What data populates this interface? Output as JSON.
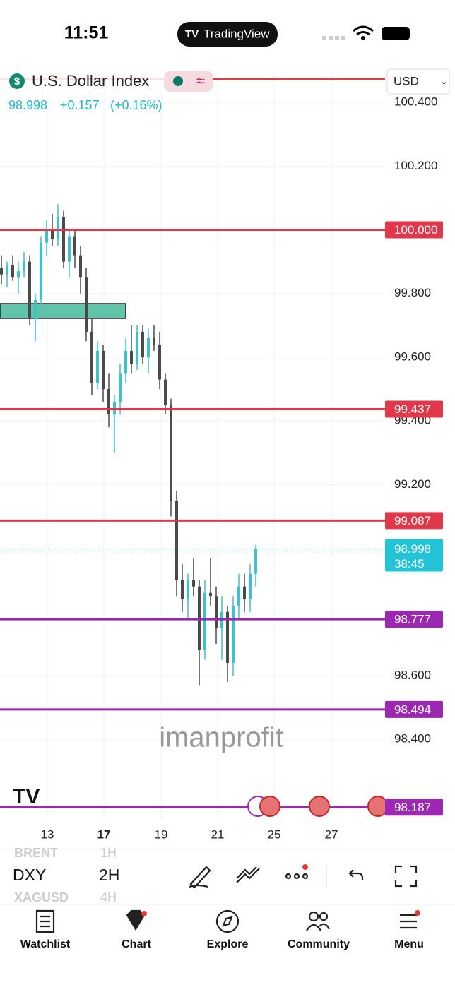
{
  "status_bar": {
    "time": "11:51",
    "app": "TradingView"
  },
  "header": {
    "title": "U.S. Dollar Index",
    "price": "98.998",
    "change": "+0.157",
    "change_pct": "(+0.16%)",
    "currency": "USD"
  },
  "chart_data": {
    "type": "candlestick",
    "ylim": [
      98.15,
      100.5
    ],
    "yticks": [
      {
        "value": 100.4,
        "label": "100.400"
      },
      {
        "value": 100.2,
        "label": "100.200"
      },
      {
        "value": 99.8,
        "label": "99.800"
      },
      {
        "value": 99.6,
        "label": "99.600"
      },
      {
        "value": 99.4,
        "label": "99.400"
      },
      {
        "value": 99.2,
        "label": "99.200"
      },
      {
        "value": 98.6,
        "label": "98.600"
      },
      {
        "value": 98.4,
        "label": "98.400"
      }
    ],
    "xticks": [
      "13",
      "17",
      "19",
      "21",
      "25",
      "27"
    ],
    "up_color": "#3fc1c9",
    "down_color": "#4a4a4a",
    "levels": [
      {
        "value": 100.0,
        "label": "100.000",
        "color": "#e0384a"
      },
      {
        "value": 99.437,
        "label": "99.437",
        "color": "#e0384a"
      },
      {
        "value": 99.087,
        "label": "99.087",
        "color": "#e0384a"
      },
      {
        "value": 98.777,
        "label": "98.777",
        "color": "#9c27b0"
      },
      {
        "value": 98.494,
        "label": "98.494",
        "color": "#9c27b0"
      },
      {
        "value": 98.187,
        "label": "98.187",
        "color": "#9c27b0"
      }
    ],
    "last_price": {
      "value": 98.998,
      "label": "98.998",
      "countdown": "38:45",
      "color": "#22c3d6"
    },
    "watermark": "imanprofit",
    "candles": [
      [
        99.88,
        99.92,
        99.83,
        99.86
      ],
      [
        99.86,
        99.9,
        99.82,
        99.89
      ],
      [
        99.89,
        99.92,
        99.84,
        99.85
      ],
      [
        99.85,
        99.9,
        99.8,
        99.87
      ],
      [
        99.87,
        99.93,
        99.85,
        99.9
      ],
      [
        99.9,
        99.92,
        99.7,
        99.72
      ],
      [
        99.72,
        99.8,
        99.65,
        99.78
      ],
      [
        99.78,
        99.98,
        99.76,
        99.96
      ],
      [
        99.96,
        100.03,
        99.92,
        100.0
      ],
      [
        100.0,
        100.05,
        99.95,
        99.97
      ],
      [
        99.97,
        100.08,
        99.95,
        100.04
      ],
      [
        100.04,
        100.06,
        99.88,
        99.9
      ],
      [
        99.9,
        100.0,
        99.85,
        99.98
      ],
      [
        99.98,
        100.0,
        99.88,
        99.92
      ],
      [
        99.92,
        99.95,
        99.8,
        99.85
      ],
      [
        99.85,
        99.88,
        99.65,
        99.68
      ],
      [
        99.68,
        99.72,
        99.48,
        99.52
      ],
      [
        99.52,
        99.65,
        99.5,
        99.62
      ],
      [
        99.62,
        99.64,
        99.46,
        99.5
      ],
      [
        99.5,
        99.55,
        99.38,
        99.42
      ],
      [
        99.42,
        99.48,
        99.3,
        99.46
      ],
      [
        99.46,
        99.58,
        99.42,
        99.55
      ],
      [
        99.55,
        99.66,
        99.52,
        99.62
      ],
      [
        99.62,
        99.7,
        99.55,
        99.58
      ],
      [
        99.58,
        99.7,
        99.56,
        99.68
      ],
      [
        99.68,
        99.7,
        99.58,
        99.6
      ],
      [
        99.6,
        99.69,
        99.55,
        99.66
      ],
      [
        99.66,
        99.7,
        99.62,
        99.64
      ],
      [
        99.64,
        99.68,
        99.5,
        99.53
      ],
      [
        99.53,
        99.55,
        99.42,
        99.45
      ],
      [
        99.45,
        99.47,
        99.1,
        99.15
      ],
      [
        99.15,
        99.18,
        98.85,
        98.9
      ],
      [
        98.9,
        98.95,
        98.8,
        98.84
      ],
      [
        98.84,
        98.92,
        98.78,
        98.9
      ],
      [
        98.9,
        98.97,
        98.85,
        98.88
      ],
      [
        98.88,
        98.9,
        98.57,
        98.68
      ],
      [
        98.68,
        98.9,
        98.65,
        98.86
      ],
      [
        98.86,
        98.97,
        98.82,
        98.85
      ],
      [
        98.85,
        98.88,
        98.7,
        98.75
      ],
      [
        98.75,
        98.85,
        98.65,
        98.8
      ],
      [
        98.8,
        98.82,
        98.58,
        98.64
      ],
      [
        98.64,
        98.85,
        98.6,
        98.82
      ],
      [
        98.82,
        98.92,
        98.78,
        98.88
      ],
      [
        98.88,
        98.92,
        98.8,
        98.84
      ],
      [
        98.84,
        98.95,
        98.8,
        98.92
      ],
      [
        98.92,
        99.01,
        98.88,
        98.998
      ]
    ]
  },
  "toolbar": {
    "symbol": "DXY",
    "interval": "2H",
    "symbol_prev": "BRENT",
    "interval_prev": "1H",
    "symbol_next": "XAGUSD",
    "interval_next": "4H"
  },
  "nav": [
    "Watchlist",
    "Chart",
    "Explore",
    "Community",
    "Menu"
  ]
}
